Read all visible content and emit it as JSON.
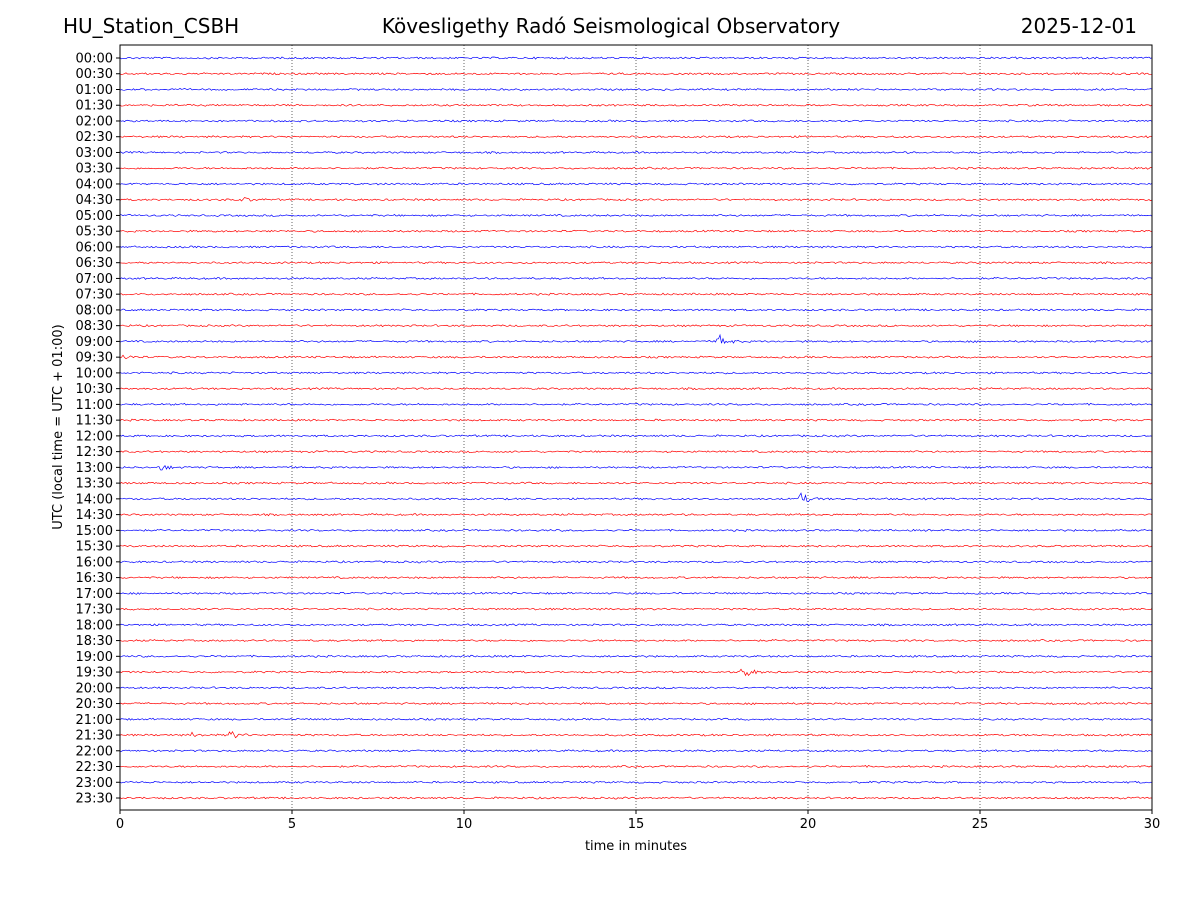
{
  "header": {
    "station": "HU_Station_CSBH",
    "observatory": "Kövesligethy Radó Seismological Observatory",
    "date": "2025-12-01"
  },
  "chart_data": {
    "type": "line",
    "title": "Kövesligethy Radó Seismological Observatory",
    "xlabel": "time in minutes",
    "ylabel": "UTC (local time = UTC + 01:00)",
    "xlim": [
      0,
      30
    ],
    "x_ticks": [
      "0",
      "5",
      "10",
      "15",
      "20",
      "25",
      "30"
    ],
    "x_tick_values": [
      0,
      5,
      10,
      15,
      20,
      25,
      30
    ],
    "grid": "vertical dotted at each x tick",
    "trace_colors": [
      "#0000ff",
      "#ff0000"
    ],
    "rows": [
      "00:00",
      "00:30",
      "01:00",
      "01:30",
      "02:00",
      "02:30",
      "03:00",
      "03:30",
      "04:00",
      "04:30",
      "05:00",
      "05:30",
      "06:00",
      "06:30",
      "07:00",
      "07:30",
      "08:00",
      "08:30",
      "09:00",
      "09:30",
      "10:00",
      "10:30",
      "11:00",
      "11:30",
      "12:00",
      "12:30",
      "13:00",
      "13:30",
      "14:00",
      "14:30",
      "15:00",
      "15:30",
      "16:00",
      "16:30",
      "17:00",
      "17:30",
      "18:00",
      "18:30",
      "19:00",
      "19:30",
      "20:00",
      "20:30",
      "21:00",
      "21:30",
      "22:00",
      "22:30",
      "23:00",
      "23:30"
    ],
    "events": [
      {
        "row": "04:30",
        "minute": 3.5,
        "amplitude": 0.4
      },
      {
        "row": "09:00",
        "minute": 17.4,
        "amplitude": 1.0
      },
      {
        "row": "09:30",
        "minute": 0.1,
        "amplitude": 0.3
      },
      {
        "row": "13:00",
        "minute": 1.2,
        "amplitude": 0.4
      },
      {
        "row": "14:00",
        "minute": 19.8,
        "amplitude": 0.8
      },
      {
        "row": "19:30",
        "minute": 18.1,
        "amplitude": 1.0
      },
      {
        "row": "21:30",
        "minute": 3.2,
        "amplitude": 0.6
      },
      {
        "row": "21:30",
        "minute": 2.1,
        "amplitude": 0.3
      }
    ]
  }
}
